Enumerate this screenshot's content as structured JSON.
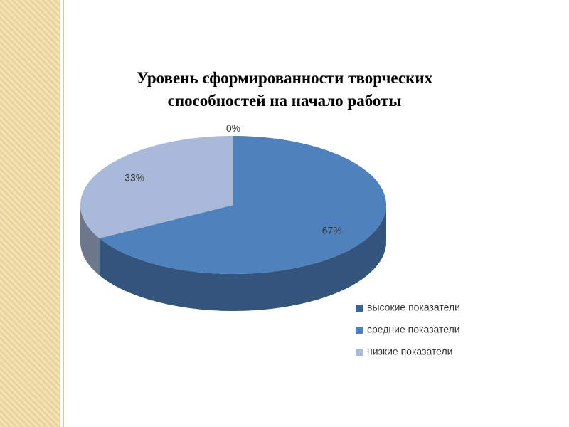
{
  "chart_data": {
    "type": "pie",
    "title": "Уровень сформированности творческих способностей на начало работы",
    "categories": [
      "высокие показатели",
      "средние показатели",
      "низкие показатели"
    ],
    "values": [
      0,
      67,
      33
    ],
    "value_labels": [
      "0%",
      "67%",
      "33%"
    ],
    "colors": [
      "#3b6496",
      "#4f81bd",
      "#a9b9d9"
    ],
    "legend": "bottom-right"
  }
}
